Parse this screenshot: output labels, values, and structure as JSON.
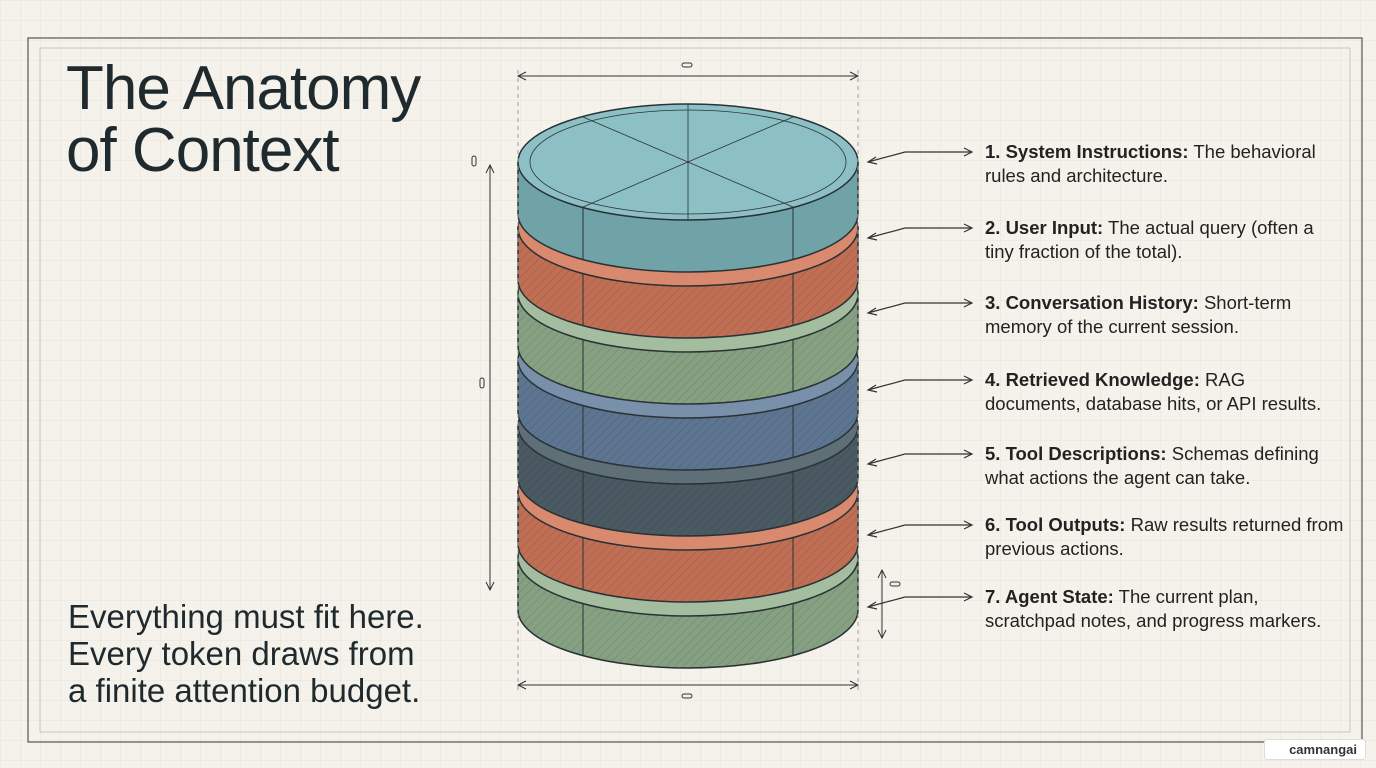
{
  "title_lines": [
    "The Anatomy",
    "of Context"
  ],
  "layers": [
    {
      "label": "1. System Instructions:",
      "description": "The behavioral rules and architecture."
    },
    {
      "label": "2. User Input:",
      "description": "The actual query (often a tiny fraction of the total)."
    },
    {
      "label": "3. Conversation History:",
      "description": "Short-term memory of the current session."
    },
    {
      "label": "4. Retrieved Knowledge:",
      "description": "RAG documents, database hits, or API results."
    },
    {
      "label": "5. Tool Descriptions:",
      "description": "Schemas defining what actions the agent can take."
    },
    {
      "label": "6. Tool Outputs:",
      "description": "Raw results returned from previous actions."
    },
    {
      "label": "7. Agent State:",
      "description": "The current plan, scratchpad notes, and progress markers."
    }
  ],
  "footer_lines": [
    "Everything must fit here.",
    "Every token draws from",
    "a finite attention budget."
  ],
  "watermark": "camnangai"
}
